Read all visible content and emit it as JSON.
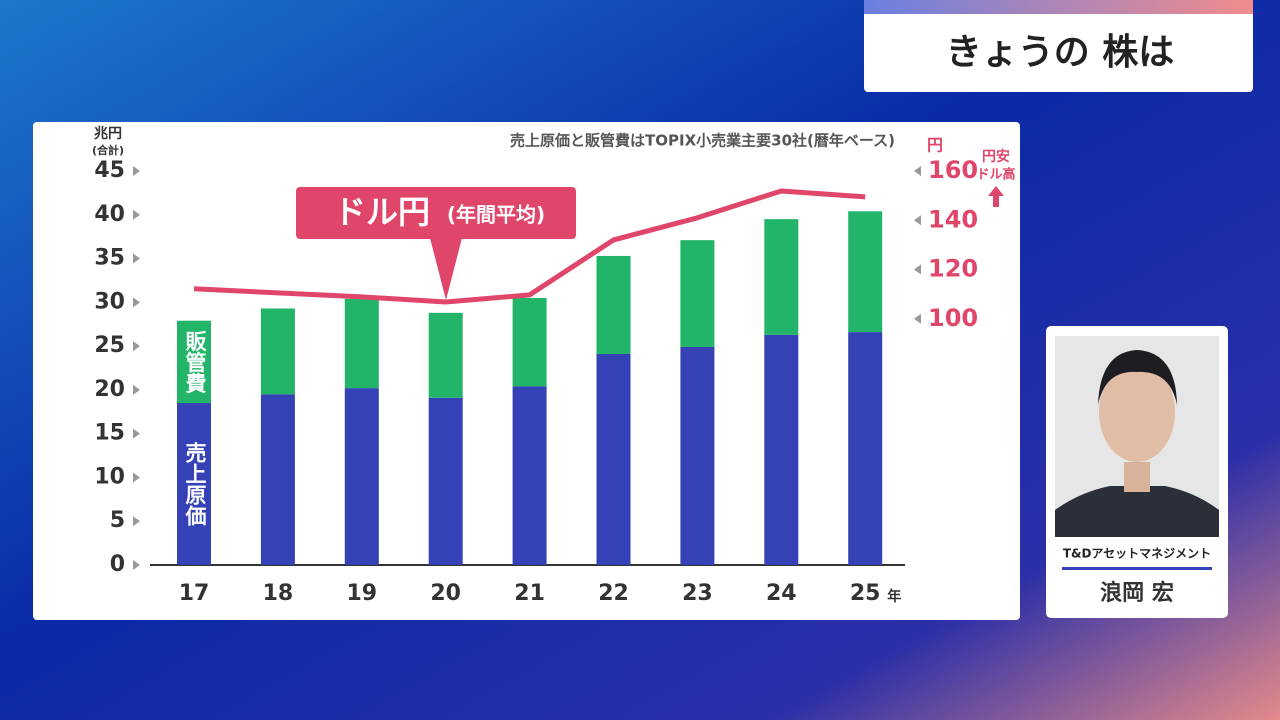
{
  "header": {
    "title": "きょうの 株は"
  },
  "chart_data": {
    "type": "bar",
    "stacked": true,
    "subtitle": "売上原価と販管費はTOPIX小売業主要30社(暦年ベース)",
    "y_unit": "兆円",
    "y_unit_note": "(合計)",
    "y2_unit": "円",
    "y2_notes": [
      "円安",
      "ドル高"
    ],
    "categories": [
      "17",
      "18",
      "19",
      "20",
      "21",
      "22",
      "23",
      "24",
      "25"
    ],
    "category_suffix": "年",
    "ylim": [
      0,
      45
    ],
    "yticks": [
      0,
      5,
      10,
      15,
      20,
      25,
      30,
      35,
      40,
      45
    ],
    "y2lim": [
      0,
      160
    ],
    "y2ticks": [
      100,
      120,
      140,
      160
    ],
    "series": [
      {
        "name": "売上原価",
        "color": "#3442b5",
        "values": [
          18.5,
          19.5,
          20.2,
          19.1,
          20.4,
          24.1,
          24.9,
          26.3,
          26.6
        ]
      },
      {
        "name": "販管費",
        "color": "#22b56a",
        "values": [
          9.4,
          9.8,
          10.2,
          9.7,
          10.1,
          11.2,
          12.2,
          13.2,
          13.8
        ]
      },
      {
        "name": "ドル円",
        "type": "line",
        "axis": "y2",
        "color": "#e0456a",
        "values": [
          112.2,
          110.5,
          108.9,
          106.8,
          109.7,
          132,
          141,
          151.9,
          149.5
        ]
      }
    ],
    "line_note": "(年間平均)"
  },
  "guest": {
    "company": "T&Dアセットマネジメント",
    "name": "浪岡 宏"
  }
}
